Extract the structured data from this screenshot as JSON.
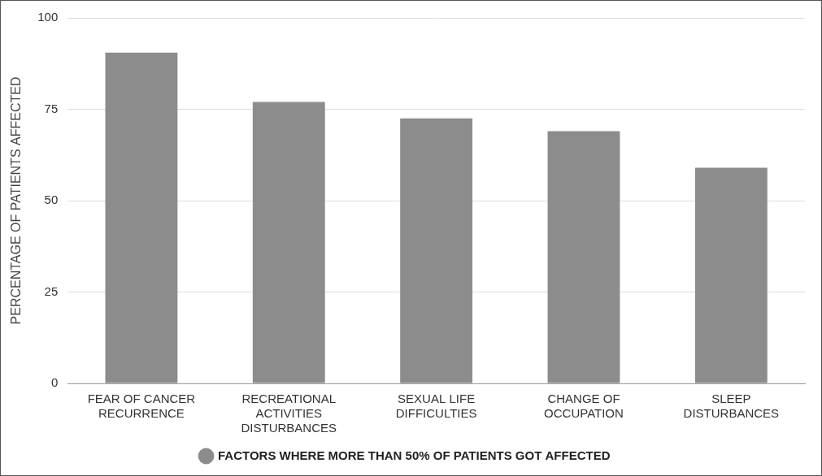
{
  "chart_data": {
    "type": "bar",
    "categories": [
      "FEAR OF CANCER RECURRENCE",
      "RECREATIONAL ACTIVITIES DISTURBANCES",
      "SEXUAL LIFE DIFFICULTIES",
      "CHANGE OF OCCUPATION",
      "SLEEP DISTURBANCES"
    ],
    "series": [
      {
        "name": "FACTORS WHERE MORE THAN 50% OF PATIENTS GOT AFFECTED",
        "color": "#8c8c8c",
        "values": [
          90.5,
          77,
          72.5,
          69,
          59
        ]
      }
    ],
    "y_label": "PERCENTAGE OF PATIENTS AFFECTED",
    "ylim": [
      0,
      100
    ],
    "yticks": [
      0,
      25,
      50,
      75,
      100
    ],
    "grid": true,
    "legend": "bottom"
  }
}
